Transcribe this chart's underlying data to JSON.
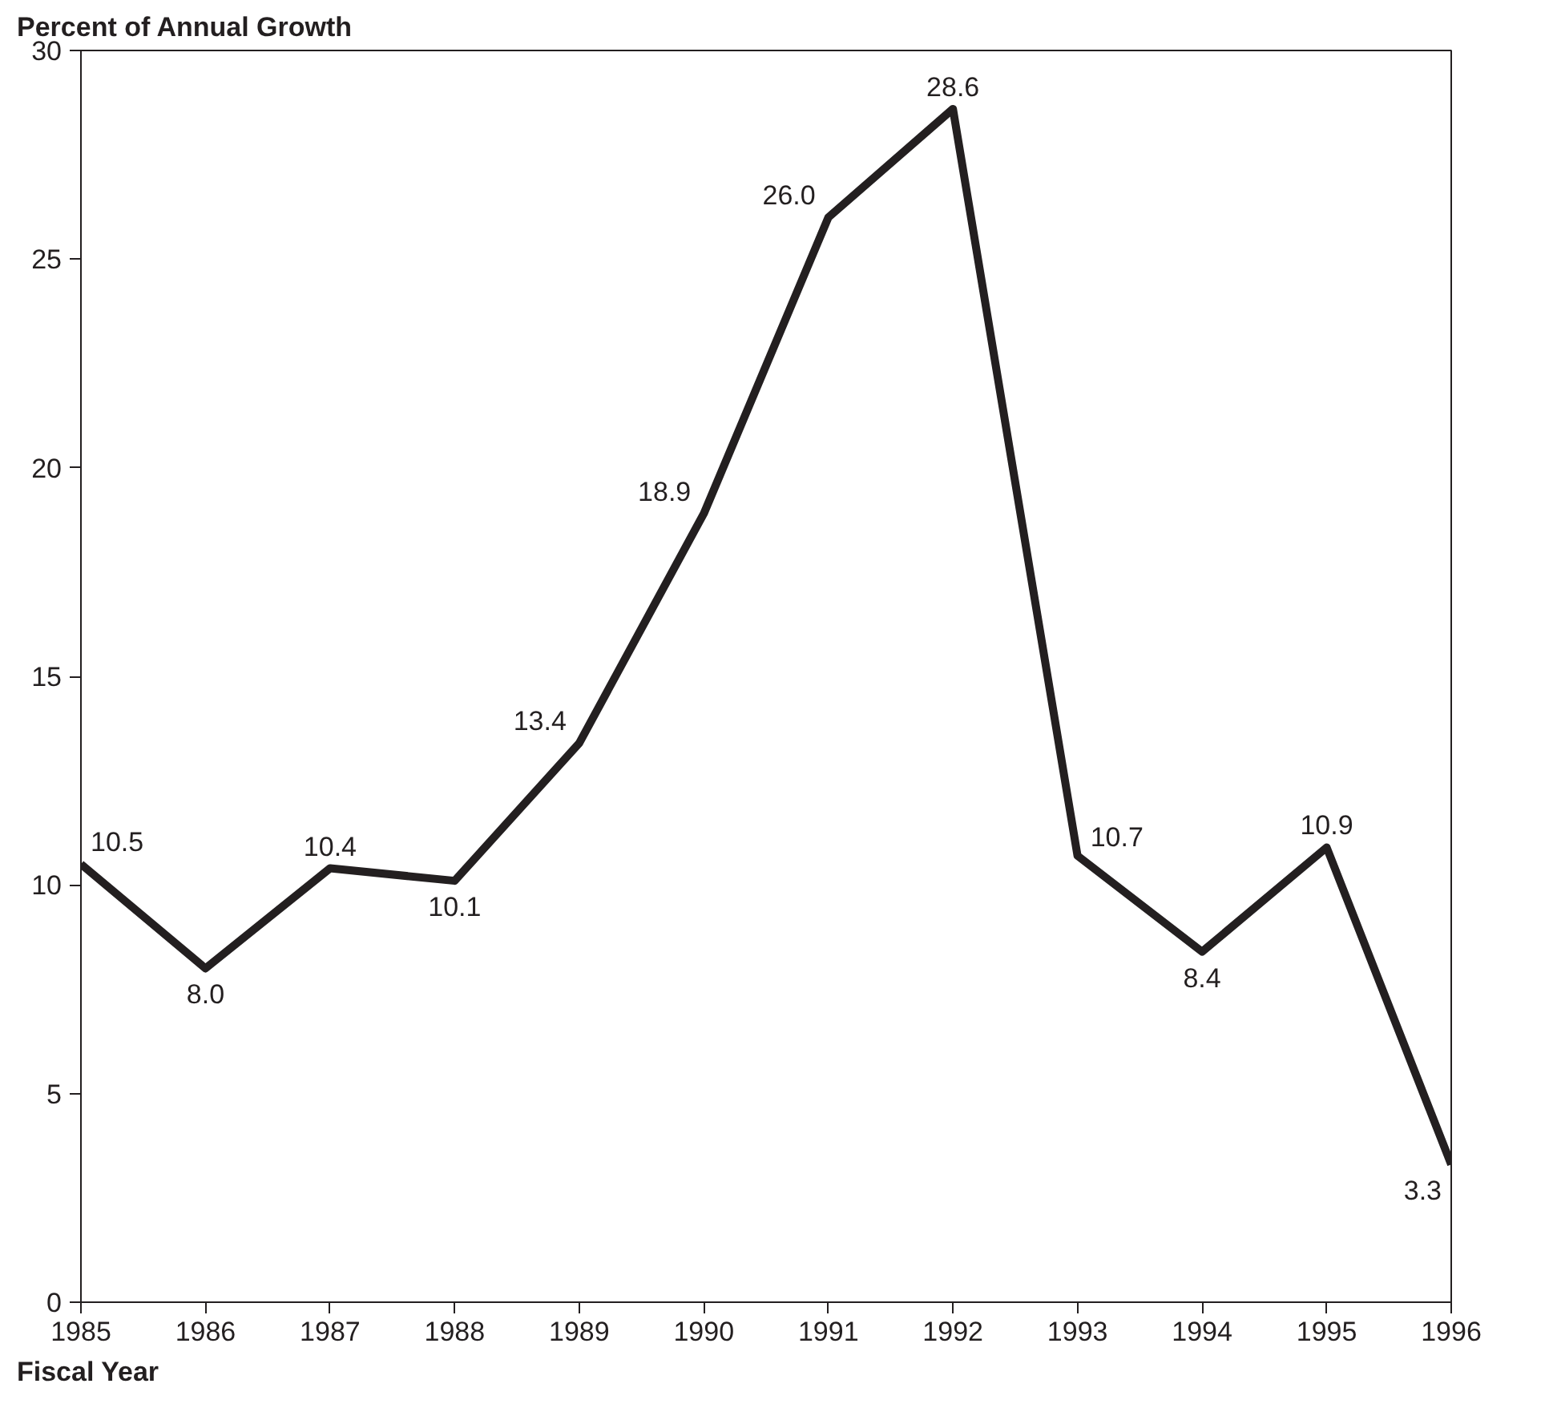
{
  "chart_data": {
    "type": "line",
    "ylabel": "Percent of Annual Growth",
    "xlabel": "Fiscal Year",
    "x": [
      1985,
      1986,
      1987,
      1988,
      1989,
      1990,
      1991,
      1992,
      1993,
      1994,
      1995,
      1996
    ],
    "series": [
      {
        "color": "#231f20",
        "values": [
          10.5,
          8.0,
          10.4,
          10.1,
          13.4,
          18.9,
          26.0,
          28.6,
          10.7,
          8.4,
          10.9,
          3.3
        ],
        "value_labels": [
          "10.5",
          "8.0",
          "10.4",
          "10.1",
          "13.4",
          "18.9",
          "26.0",
          "28.6",
          "10.7",
          "8.4",
          "10.9",
          "3.3"
        ]
      }
    ],
    "xlim": [
      1985,
      1996
    ],
    "xticks": [
      1985,
      1986,
      1987,
      1988,
      1989,
      1990,
      1991,
      1992,
      1993,
      1994,
      1995,
      1996
    ],
    "ylim": [
      0,
      30
    ],
    "yticks": [
      0,
      5,
      10,
      15,
      20,
      25,
      30
    ],
    "grid": false,
    "marker": "none",
    "line_style": "solid"
  }
}
